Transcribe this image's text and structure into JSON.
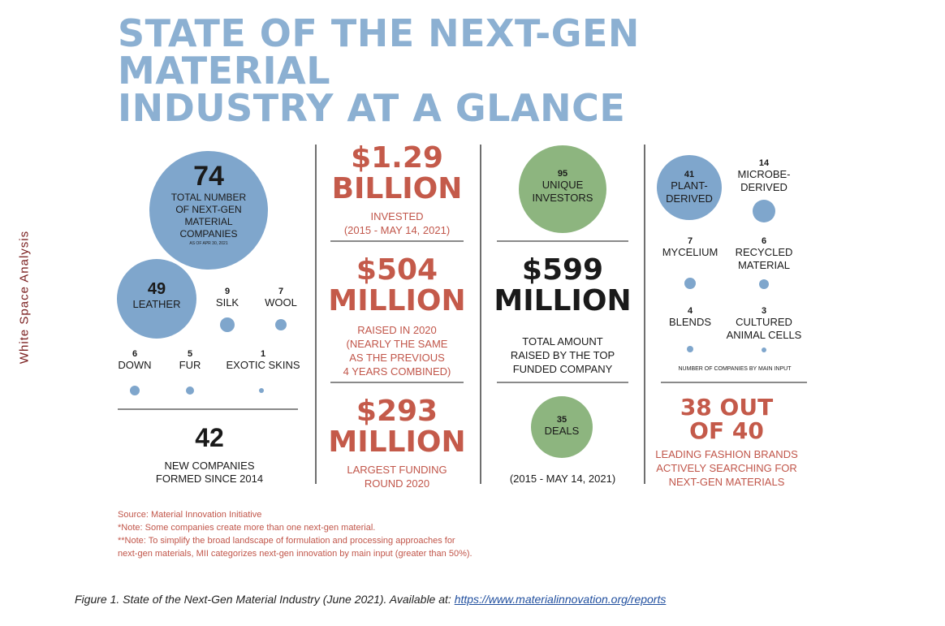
{
  "title_line1": "STATE OF THE NEXT-GEN MATERIAL",
  "title_line2": "INDUSTRY AT A GLANCE",
  "side_label": "White Space Analysis",
  "col1": {
    "total_num": "74",
    "total_line1": "TOTAL NUMBER",
    "total_line2": "OF NEXT-GEN",
    "total_line3": "MATERIAL",
    "total_line4": "COMPANIES",
    "total_asof": "AS OF APR 30, 2021",
    "leather_num": "49",
    "leather_label": "LEATHER",
    "silk_num": "9",
    "silk_label": "SILK",
    "wool_num": "7",
    "wool_label": "WOOL",
    "down_num": "6",
    "down_label": "DOWN",
    "fur_num": "5",
    "fur_label": "FUR",
    "exotic_num": "1",
    "exotic_label": "EXOTIC SKINS",
    "new_num": "42",
    "new_line1": "NEW COMPANIES",
    "new_line2": "FORMED SINCE 2014"
  },
  "col2": {
    "invested_line1": "$1.29",
    "invested_line2": "BILLION",
    "invested_sub1": "INVESTED",
    "invested_sub2": "(2015 - MAY 14, 2021)",
    "raised_line1": "$504",
    "raised_line2": "MILLION",
    "raised_sub1": "RAISED IN 2020",
    "raised_sub2": "(NEARLY THE SAME",
    "raised_sub3": "AS THE PREVIOUS",
    "raised_sub4": "4 YEARS COMBINED)",
    "largest_line1": "$293",
    "largest_line2": "MILLION",
    "largest_sub1": "LARGEST FUNDING",
    "largest_sub2": "ROUND 2020"
  },
  "col3": {
    "investors_num": "95",
    "investors_line1": "UNIQUE",
    "investors_line2": "INVESTORS",
    "top_line1": "$599",
    "top_line2": "MILLION",
    "top_sub1": "TOTAL AMOUNT",
    "top_sub2": "RAISED BY THE TOP",
    "top_sub3": "FUNDED COMPANY",
    "deals_num": "35",
    "deals_label": "DEALS",
    "deals_period": "(2015 - MAY 14, 2021)"
  },
  "col4": {
    "plant_num": "41",
    "plant_line1": "PLANT-",
    "plant_line2": "DERIVED",
    "microbe_num": "14",
    "microbe_line1": "MICROBE-",
    "microbe_line2": "DERIVED",
    "mycelium_num": "7",
    "mycelium_label": "MYCELIUM",
    "recycled_num": "6",
    "recycled_line1": "RECYCLED",
    "recycled_line2": "MATERIAL",
    "blends_num": "4",
    "blends_label": "BLENDS",
    "cultured_num": "3",
    "cultured_line1": "CULTURED",
    "cultured_line2": "ANIMAL CELLS",
    "input_note": "NUMBER OF COMPANIES BY MAIN INPUT",
    "brands_line1": "38 OUT",
    "brands_line2": "OF 40",
    "brands_sub1": "LEADING FASHION BRANDS",
    "brands_sub2": "ACTIVELY SEARCHING FOR",
    "brands_sub3": "NEXT-GEN MATERIALS"
  },
  "footnotes": {
    "source": "Source: Material Innovation Initiative",
    "note1": "*Note: Some companies create more than one next-gen material.",
    "note2a": "**Note: To simplify the broad landscape of formulation and processing approaches for",
    "note2b": "next-gen materials, MII categorizes next-gen innovation by main input (greater than 50%)."
  },
  "caption": {
    "text": "Figure 1. State of the Next-Gen Material Industry (June 2021). Available at: ",
    "link": "https://www.materialinnovation.org/reports"
  }
}
